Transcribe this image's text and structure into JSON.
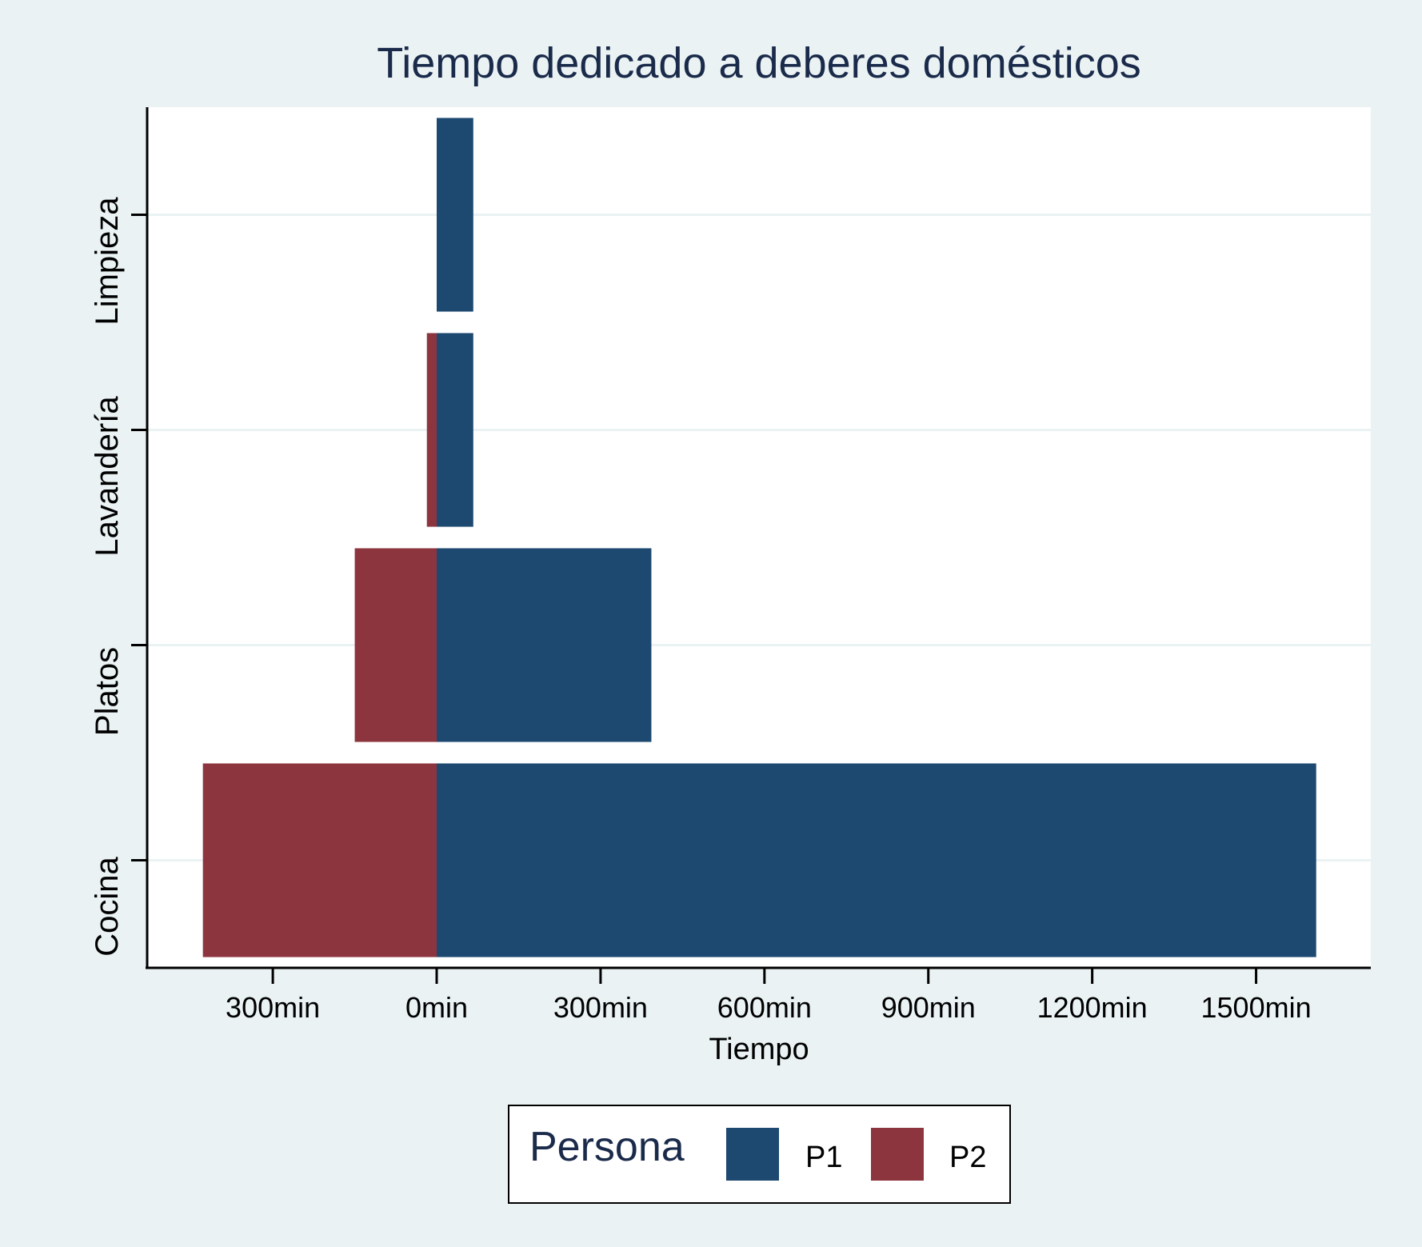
{
  "chart_data": {
    "type": "bar",
    "orientation": "horizontal",
    "stacked": "diverging",
    "title": "Tiempo dedicado a deberes domésticos",
    "xlabel": "Tiempo",
    "ylabel": "",
    "categories": [
      "Cocina",
      "Platos",
      "Lavandería",
      "Limpieza"
    ],
    "series": [
      {
        "name": "P1",
        "values": [
          1610,
          393,
          67,
          67
        ],
        "color": "#1d4870"
      },
      {
        "name": "P2",
        "values": [
          -428,
          -150,
          -18,
          0
        ],
        "color": "#8d353f"
      }
    ],
    "xlim": [
      -530,
      1710
    ],
    "xticks": [
      -300,
      0,
      300,
      600,
      900,
      1200,
      1500
    ],
    "xtick_labels": [
      "300min",
      "0min",
      "300min",
      "600min",
      "900min",
      "1200min",
      "1500min"
    ],
    "grid": true,
    "legend": {
      "title": "Persona",
      "position": "bottom",
      "entries": [
        "P1",
        "P2"
      ]
    }
  }
}
